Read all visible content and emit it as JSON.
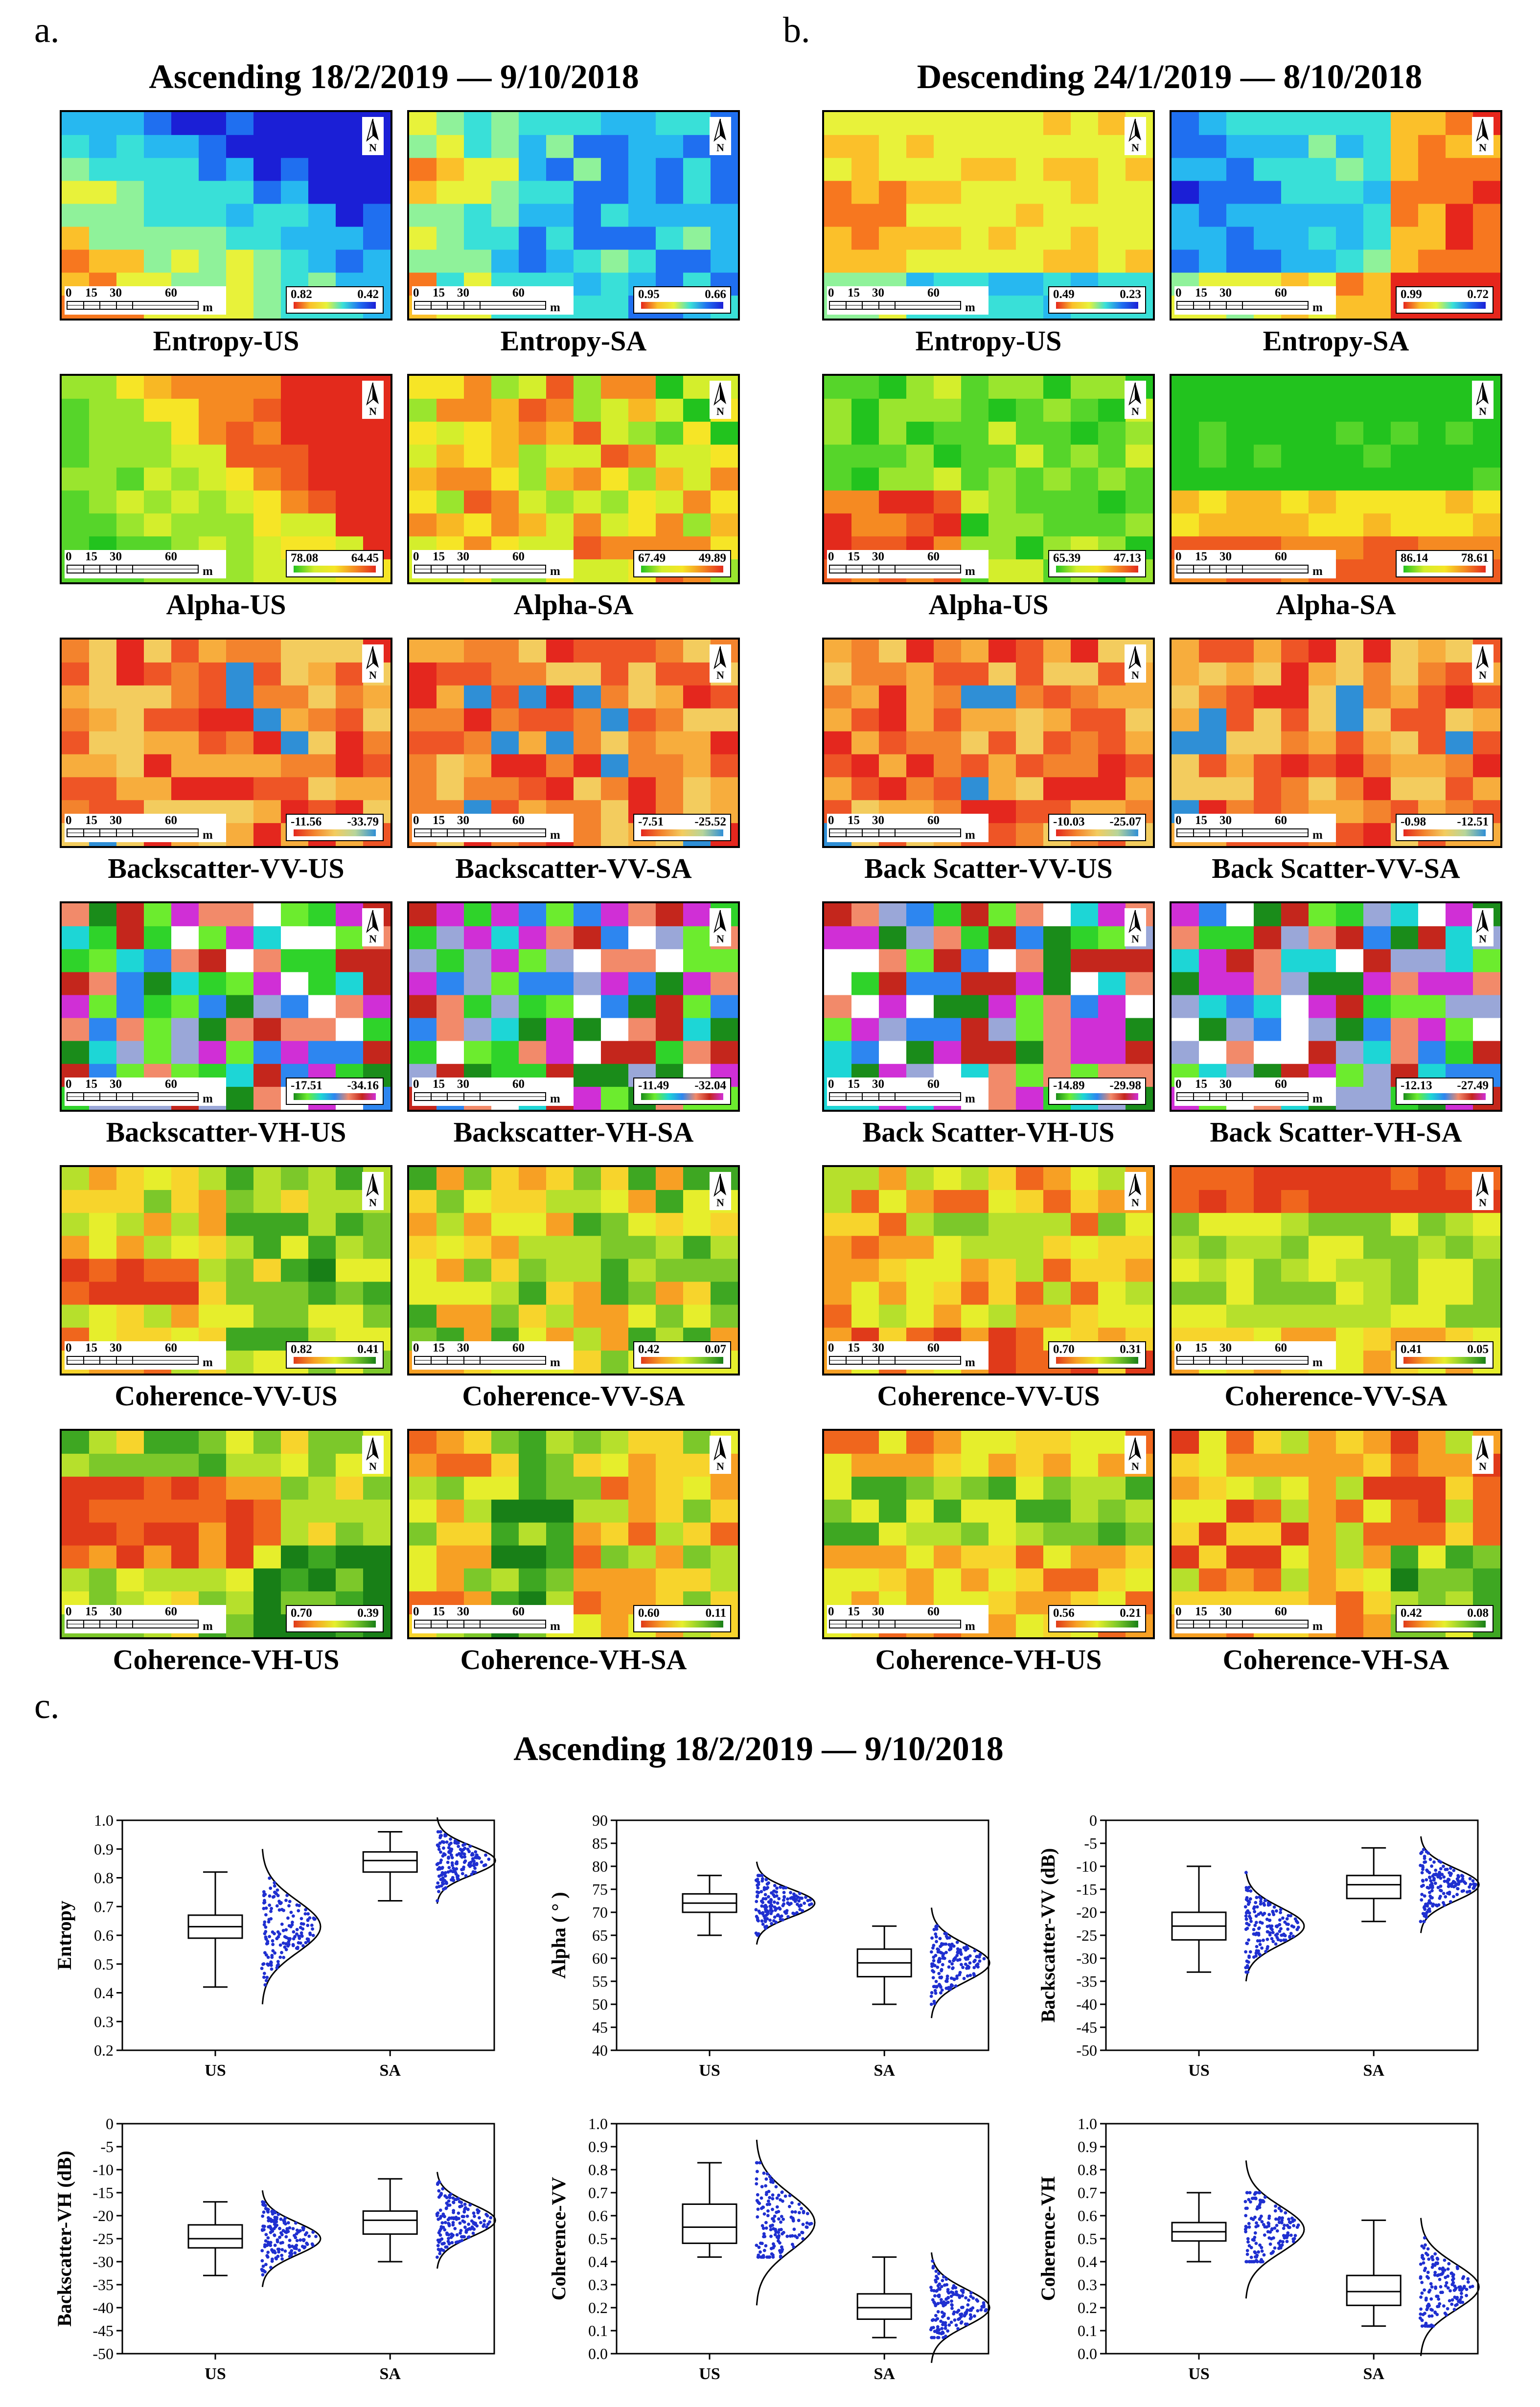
{
  "panel_letters": {
    "a": "a.",
    "b": "b.",
    "c": "c."
  },
  "panel_a_title": "Ascending   18/2/2019 — 9/10/2018",
  "panel_b_title": "Descending   24/1/2019 — 8/10/2018",
  "panel_c_title": "Ascending   18/2/2019 — 9/10/2018",
  "north_label": "N",
  "scale": {
    "ticks": [
      "0",
      "15",
      "30",
      "60"
    ],
    "unit": "m"
  },
  "maps": [
    {
      "label": "Entropy-US",
      "max": "0.82",
      "min": "0.42",
      "ramp": "jet"
    },
    {
      "label": "Entropy-SA",
      "max": "0.95",
      "min": "0.66",
      "ramp": "jet"
    },
    {
      "label": "Entropy-US",
      "max": "0.49",
      "min": "0.23",
      "ramp": "jet"
    },
    {
      "label": "Entropy-SA",
      "max": "0.99",
      "min": "0.72",
      "ramp": "jet"
    },
    {
      "label": "Alpha-US",
      "max": "78.08",
      "min": "64.45",
      "ramp": "gyr"
    },
    {
      "label": "Alpha-SA",
      "max": "67.49",
      "min": "49.89",
      "ramp": "gyr"
    },
    {
      "label": "Alpha-US",
      "max": "65.39",
      "min": "47.13",
      "ramp": "gyr"
    },
    {
      "label": "Alpha-SA",
      "max": "86.14",
      "min": "78.61",
      "ramp": "gyr"
    },
    {
      "label": "Backscatter-VV-US",
      "max": "-11.56",
      "min": "-33.79",
      "ramp": "ryb"
    },
    {
      "label": "Backscatter-VV-SA",
      "max": "-7.51",
      "min": "-25.52",
      "ramp": "ryb"
    },
    {
      "label": "Back Scatter-VV-US",
      "max": "-10.03",
      "min": "-25.07",
      "ramp": "ryb"
    },
    {
      "label": "Back Scatter-VV-SA",
      "max": "-0.98",
      "min": "-12.51",
      "ramp": "ryb"
    },
    {
      "label": "Backscatter-VH-US",
      "max": "-17.51",
      "min": "-34.16",
      "ramp": "multi"
    },
    {
      "label": "Backscatter-VH-SA",
      "max": "-11.49",
      "min": "-32.04",
      "ramp": "multi"
    },
    {
      "label": "Back Scatter-VH-US",
      "max": "-14.89",
      "min": "-29.98",
      "ramp": "multi"
    },
    {
      "label": "Back Scatter-VH-SA",
      "max": "-12.13",
      "min": "-27.49",
      "ramp": "multi"
    },
    {
      "label": "Coherence-VV-US",
      "max": "0.82",
      "min": "0.41",
      "ramp": "ryg"
    },
    {
      "label": "Coherence-VV-SA",
      "max": "0.42",
      "min": "0.07",
      "ramp": "ryg"
    },
    {
      "label": "Coherence-VV-US",
      "max": "0.70",
      "min": "0.31",
      "ramp": "ryg"
    },
    {
      "label": "Coherence-VV-SA",
      "max": "0.41",
      "min": "0.05",
      "ramp": "ryg"
    },
    {
      "label": "Coherence-VH-US",
      "max": "0.70",
      "min": "0.39",
      "ramp": "ryg"
    },
    {
      "label": "Coherence-VH-SA",
      "max": "0.60",
      "min": "0.11",
      "ramp": "ryg"
    },
    {
      "label": "Coherence-VH-US",
      "max": "0.56",
      "min": "0.21",
      "ramp": "ryg"
    },
    {
      "label": "Coherence-VH-SA",
      "max": "0.42",
      "min": "0.08",
      "ramp": "ryg"
    }
  ],
  "chart_data": [
    {
      "type": "box",
      "ylabel": "Entropy",
      "categories": [
        "US",
        "SA"
      ],
      "ylim": [
        0.2,
        1.0
      ],
      "yticks": [
        "0.2",
        "0.3",
        "0.4",
        "0.5",
        "0.6",
        "0.7",
        "0.8",
        "0.9",
        "1.0"
      ],
      "series": [
        {
          "name": "US",
          "min": 0.42,
          "q1": 0.59,
          "median": 0.63,
          "q3": 0.67,
          "max": 0.82,
          "mean": 0.63,
          "sd": 0.09
        },
        {
          "name": "SA",
          "min": 0.72,
          "q1": 0.82,
          "median": 0.86,
          "q3": 0.89,
          "max": 0.96,
          "mean": 0.86,
          "sd": 0.05
        }
      ]
    },
    {
      "type": "box",
      "ylabel": "Alpha ( ° )",
      "categories": [
        "US",
        "SA"
      ],
      "ylim": [
        40,
        90
      ],
      "yticks": [
        "40",
        "45",
        "50",
        "55",
        "60",
        "65",
        "70",
        "75",
        "80",
        "85",
        "90"
      ],
      "series": [
        {
          "name": "US",
          "min": 65,
          "q1": 70,
          "median": 72,
          "q3": 74,
          "max": 78,
          "mean": 72,
          "sd": 3
        },
        {
          "name": "SA",
          "min": 50,
          "q1": 56,
          "median": 59,
          "q3": 62,
          "max": 67,
          "mean": 59,
          "sd": 4
        }
      ]
    },
    {
      "type": "box",
      "ylabel": "Backscatter-VV (dB)",
      "categories": [
        "US",
        "SA"
      ],
      "ylim": [
        -50,
        0
      ],
      "yticks": [
        "-50",
        "-45",
        "-40",
        "-35",
        "-30",
        "-25",
        "-20",
        "-15",
        "-10",
        "-5",
        "0"
      ],
      "series": [
        {
          "name": "US",
          "min": -33,
          "q1": -26,
          "median": -23,
          "q3": -20,
          "max": -10,
          "mean": -23,
          "sd": 4
        },
        {
          "name": "SA",
          "min": -22,
          "q1": -17,
          "median": -14,
          "q3": -12,
          "max": -6,
          "mean": -14,
          "sd": 3.5
        }
      ]
    },
    {
      "type": "box",
      "ylabel": "Backscatter-VH (dB)",
      "categories": [
        "US",
        "SA"
      ],
      "ylim": [
        -50,
        0
      ],
      "yticks": [
        "-50",
        "-45",
        "-40",
        "-35",
        "-30",
        "-25",
        "-20",
        "-15",
        "-10",
        "-5",
        "0"
      ],
      "series": [
        {
          "name": "US",
          "min": -33,
          "q1": -27,
          "median": -25,
          "q3": -22,
          "max": -17,
          "mean": -25,
          "sd": 3.5
        },
        {
          "name": "SA",
          "min": -30,
          "q1": -24,
          "median": -21,
          "q3": -19,
          "max": -12,
          "mean": -21,
          "sd": 3.5
        }
      ]
    },
    {
      "type": "box",
      "ylabel": "Coherence-VV",
      "categories": [
        "US",
        "SA"
      ],
      "ylim": [
        0,
        1.0
      ],
      "yticks": [
        "0.0",
        "0.1",
        "0.2",
        "0.3",
        "0.4",
        "0.5",
        "0.6",
        "0.7",
        "0.8",
        "0.9",
        "1.0"
      ],
      "series": [
        {
          "name": "US",
          "min": 0.42,
          "q1": 0.48,
          "median": 0.55,
          "q3": 0.65,
          "max": 0.83,
          "mean": 0.57,
          "sd": 0.12
        },
        {
          "name": "SA",
          "min": 0.07,
          "q1": 0.15,
          "median": 0.2,
          "q3": 0.26,
          "max": 0.42,
          "mean": 0.2,
          "sd": 0.08
        }
      ]
    },
    {
      "type": "box",
      "ylabel": "Coherence-VH",
      "categories": [
        "US",
        "SA"
      ],
      "ylim": [
        0,
        1.0
      ],
      "yticks": [
        "0.0",
        "0.1",
        "0.2",
        "0.3",
        "0.4",
        "0.5",
        "0.6",
        "0.7",
        "0.8",
        "0.9",
        "1.0"
      ],
      "series": [
        {
          "name": "US",
          "min": 0.4,
          "q1": 0.49,
          "median": 0.53,
          "q3": 0.57,
          "max": 0.7,
          "mean": 0.54,
          "sd": 0.1
        },
        {
          "name": "SA",
          "min": 0.12,
          "q1": 0.21,
          "median": 0.27,
          "q3": 0.34,
          "max": 0.58,
          "mean": 0.29,
          "sd": 0.1
        }
      ]
    }
  ],
  "colors": {
    "box_stroke": "#000000",
    "points": "#1f2fd0",
    "curve": "#000000"
  }
}
